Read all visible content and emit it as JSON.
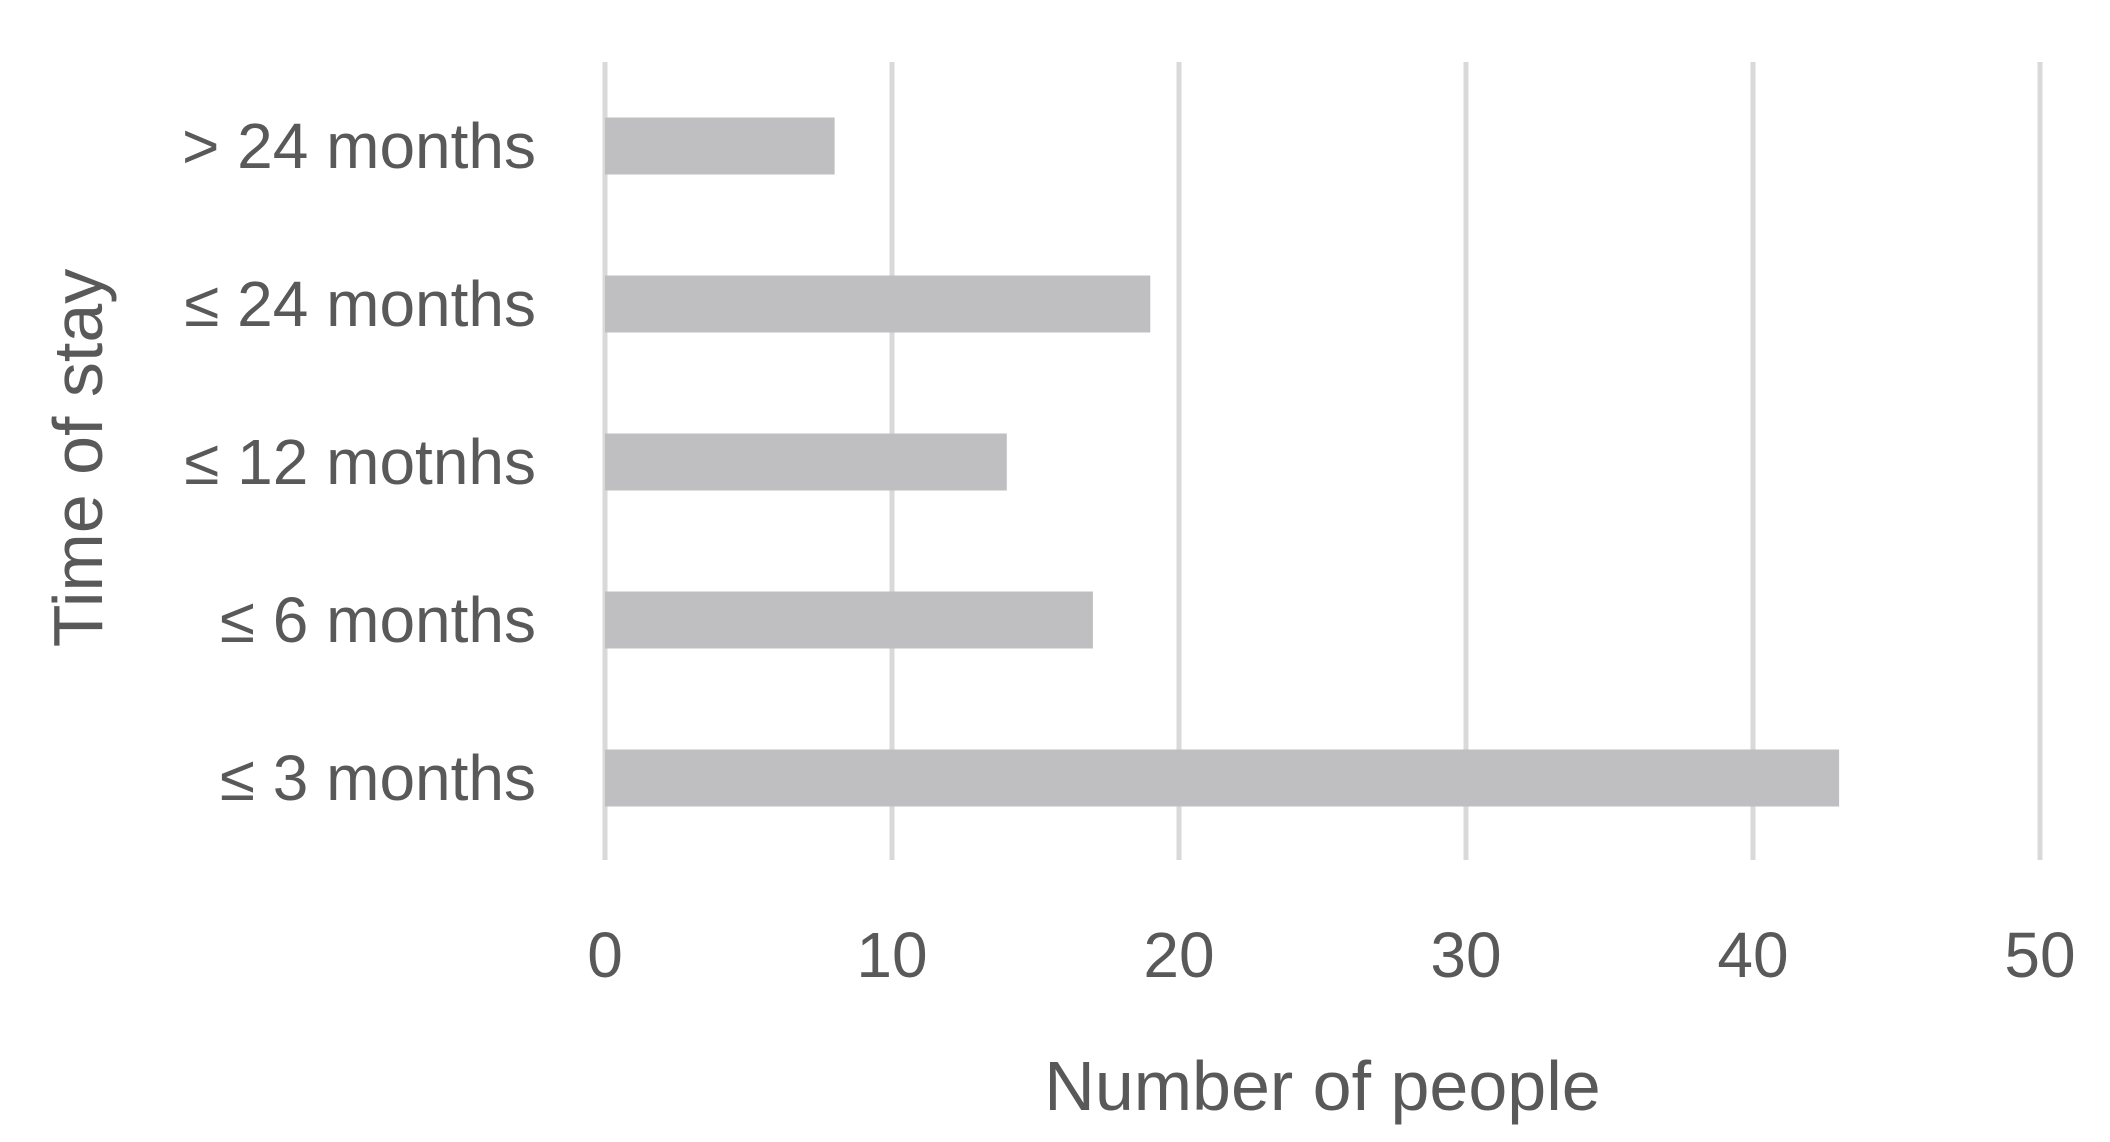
{
  "chart_data": {
    "type": "bar",
    "orientation": "horizontal",
    "categories": [
      "> 24 months",
      "≤ 24 months",
      "≤ 12 motnhs",
      "≤ 6 months",
      "≤ 3 months"
    ],
    "values": [
      8,
      19,
      14,
      17,
      43
    ],
    "title": "",
    "xlabel": "Number of people",
    "ylabel": "Time of stay",
    "xlim": [
      0,
      50
    ],
    "xticks": [
      "0",
      "10",
      "20",
      "30",
      "40",
      "50"
    ],
    "grid": "vertical",
    "legend": "none",
    "colors": {
      "bar": "#bfbfc2",
      "grid": "#d9d9d9",
      "text": "#595959"
    }
  }
}
